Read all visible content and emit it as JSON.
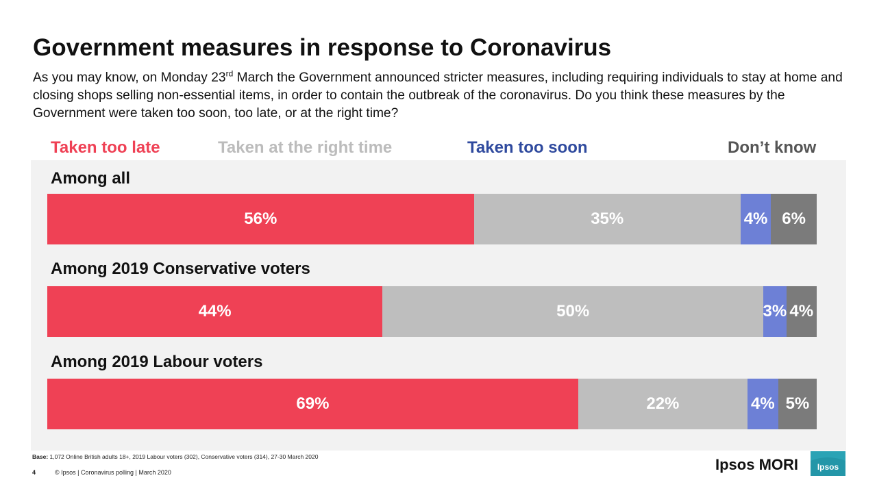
{
  "title": "Government measures in response to Coronavirus",
  "question": {
    "part1": "As you may know, on Monday 23",
    "superscript": "rd",
    "part2": " March the Government announced stricter measures, including  requiring individuals to stay at home and closing shops selling non-essential items, in order to contain the outbreak of the coronavirus. Do you think these measures by the Government were taken too soon, too late, or at the right time?"
  },
  "chart_data": {
    "type": "bar",
    "orientation": "horizontal-stacked-100",
    "categories": [
      "Among all",
      "Among 2019 Conservative voters",
      "Among 2019 Labour voters"
    ],
    "series": [
      {
        "name": "Taken too late",
        "color": "#ef4155",
        "values": [
          56,
          44,
          69
        ],
        "labels": [
          "56%",
          "44%",
          "69%"
        ]
      },
      {
        "name": "Taken at the right time",
        "color": "#bebebe",
        "values": [
          35,
          50,
          22
        ],
        "labels": [
          "35%",
          "50%",
          "22%"
        ]
      },
      {
        "name": "Taken too soon",
        "color": "#6d80d6",
        "values": [
          4,
          3,
          4
        ],
        "labels": [
          "4%",
          "3%",
          "4%"
        ]
      },
      {
        "name": "Don’t know",
        "color": "#7b7b7b",
        "values": [
          6,
          4,
          5
        ],
        "labels": [
          "6%",
          "4%",
          "5%"
        ]
      }
    ],
    "legend_colors": [
      "#ef4155",
      "#bcbcbc",
      "#2f4a9e",
      "#555555"
    ]
  },
  "base_note": {
    "label": "Base:",
    "text": " 1,072 Online British adults 18+,  2019 Labour voters (302), Conservative voters (314), 27-30 March 2020"
  },
  "footer": {
    "page_number": "4",
    "text": "© Ipsos | Coronavirus polling  |  March 2020"
  },
  "brand": {
    "name": "Ipsos MORI",
    "logo_text": "Ipsos",
    "logo_color": "#2aa3b5"
  }
}
